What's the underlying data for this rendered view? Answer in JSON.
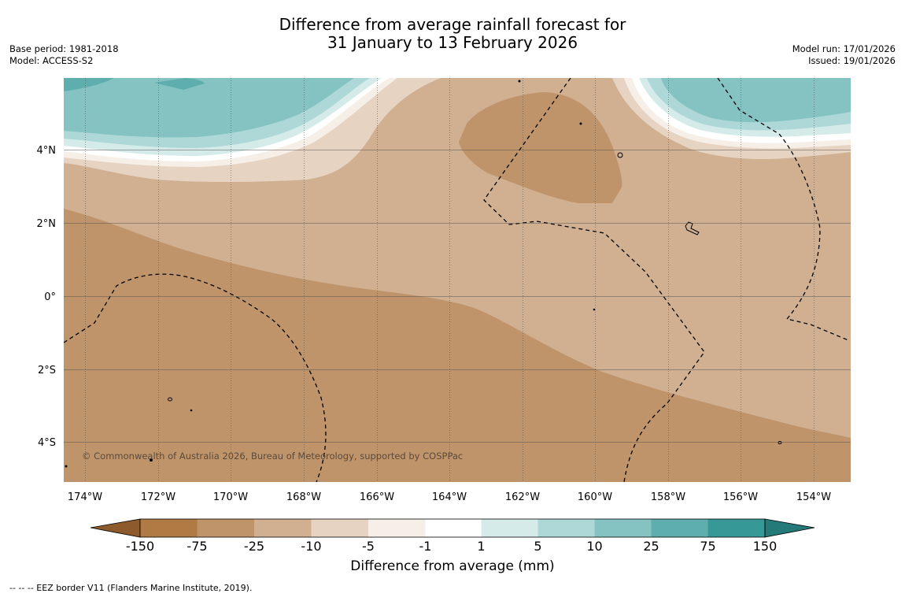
{
  "header": {
    "title_line1": "Difference from average rainfall forecast for",
    "title_line2": "31 January to 13 February 2026",
    "base_period": "Base period: 1981-2018",
    "model": "Model: ACCESS-S2",
    "model_run": "Model run: 17/01/2026",
    "issued": "Issued: 19/01/2026"
  },
  "map": {
    "lat_labels": [
      "4°N",
      "2°N",
      "0°",
      "2°S",
      "4°S"
    ],
    "lon_labels": [
      "174°W",
      "172°W",
      "170°W",
      "168°W",
      "166°W",
      "164°W",
      "162°W",
      "160°W",
      "158°W",
      "156°W",
      "154°W"
    ],
    "copyright": "© Commonwealth of Australia 2026, Bureau of Meteorology, supported by COSPPac"
  },
  "colorbar": {
    "label": "Difference from average (mm)",
    "ticks": [
      "-150",
      "-75",
      "-25",
      "-10",
      "-5",
      "-1",
      "1",
      "5",
      "10",
      "25",
      "75",
      "150"
    ],
    "colors": {
      "extend_low": "#8d5a2b",
      "c1": "#b07a45",
      "c2": "#c0946a",
      "c3": "#d1b092",
      "c4": "#e6d3c2",
      "c5": "#f6efe8",
      "c6": "#ffffff",
      "c7": "#d4ebea",
      "c8": "#aed8d7",
      "c9": "#84c3c2",
      "c10": "#5eaeae",
      "c11": "#369997",
      "extend_high": "#237a78"
    }
  },
  "footnote": "--  --  -- EEZ border V11 (Flanders Marine Institute, 2019)."
}
